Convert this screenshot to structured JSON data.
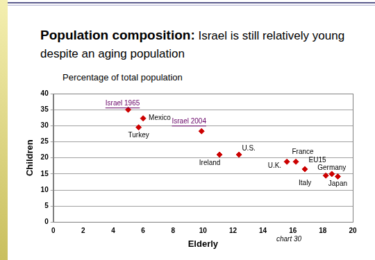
{
  "chart_data": {
    "type": "scatter",
    "title": "Population composition: Israel is still relatively young despite an aging population",
    "subtitle": "Percentage of total population",
    "x_label": "Elderly",
    "y_label": "Children",
    "note": "chart 30",
    "point_labels": [
      "Israel 1965",
      "Mexico",
      "Turkey",
      "Israel 2004",
      "Ireland",
      "U.S.",
      "U.K.",
      "France",
      "EU15",
      "Italy",
      "Germany",
      "Japan"
    ],
    "x": [
      5.0,
      6.0,
      5.7,
      9.9,
      11.1,
      12.4,
      15.6,
      16.2,
      16.8,
      18.2,
      18.6,
      19.0
    ],
    "values": [
      35.0,
      32.3,
      29.5,
      28.3,
      21.0,
      21.0,
      18.8,
      18.8,
      16.5,
      14.5,
      15.0,
      14.2
    ],
    "color": "#cc0000",
    "label_colors": [
      "#660066",
      "#000000",
      "#000000",
      "#660066",
      "#000000",
      "#000000",
      "#000000",
      "#000000",
      "#000000",
      "#000000",
      "#000000",
      "#000000"
    ],
    "marker": "diamond",
    "xlim": [
      0,
      20
    ],
    "xticks": [
      0,
      2,
      4,
      6,
      8,
      10,
      12,
      14,
      16,
      18,
      20
    ],
    "ylim": [
      0,
      40
    ],
    "yticks": [
      0,
      5,
      10,
      15,
      20,
      25,
      30,
      35,
      40
    ],
    "grid": true
  }
}
